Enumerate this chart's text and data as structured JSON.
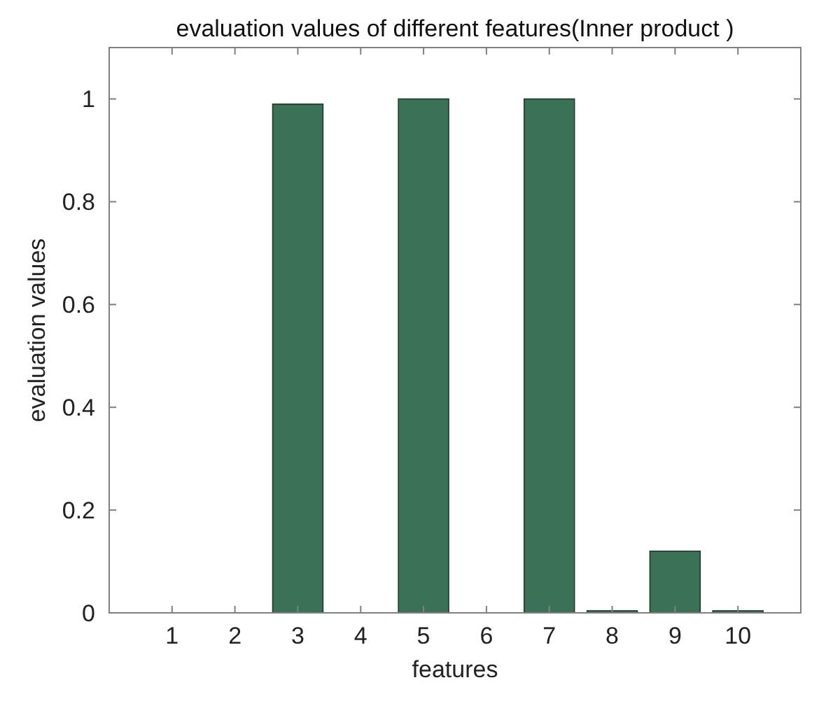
{
  "chart_data": {
    "type": "bar",
    "title": "evaluation values of different features(Inner product )",
    "xlabel": "features",
    "ylabel": "evaluation values",
    "x": [
      1,
      2,
      3,
      4,
      5,
      6,
      7,
      8,
      9,
      10
    ],
    "values": [
      0,
      0,
      0.99,
      0,
      1,
      0,
      1,
      0.002,
      0.12,
      0.002
    ],
    "color": "#3b7257",
    "xlim": [
      0,
      11
    ],
    "xticks": [
      1,
      2,
      3,
      4,
      5,
      6,
      7,
      8,
      9,
      10
    ],
    "ylim": [
      0,
      1.1
    ],
    "yticks": [
      0,
      0.2,
      0.4,
      0.6,
      0.8,
      1
    ],
    "grid": false
  }
}
